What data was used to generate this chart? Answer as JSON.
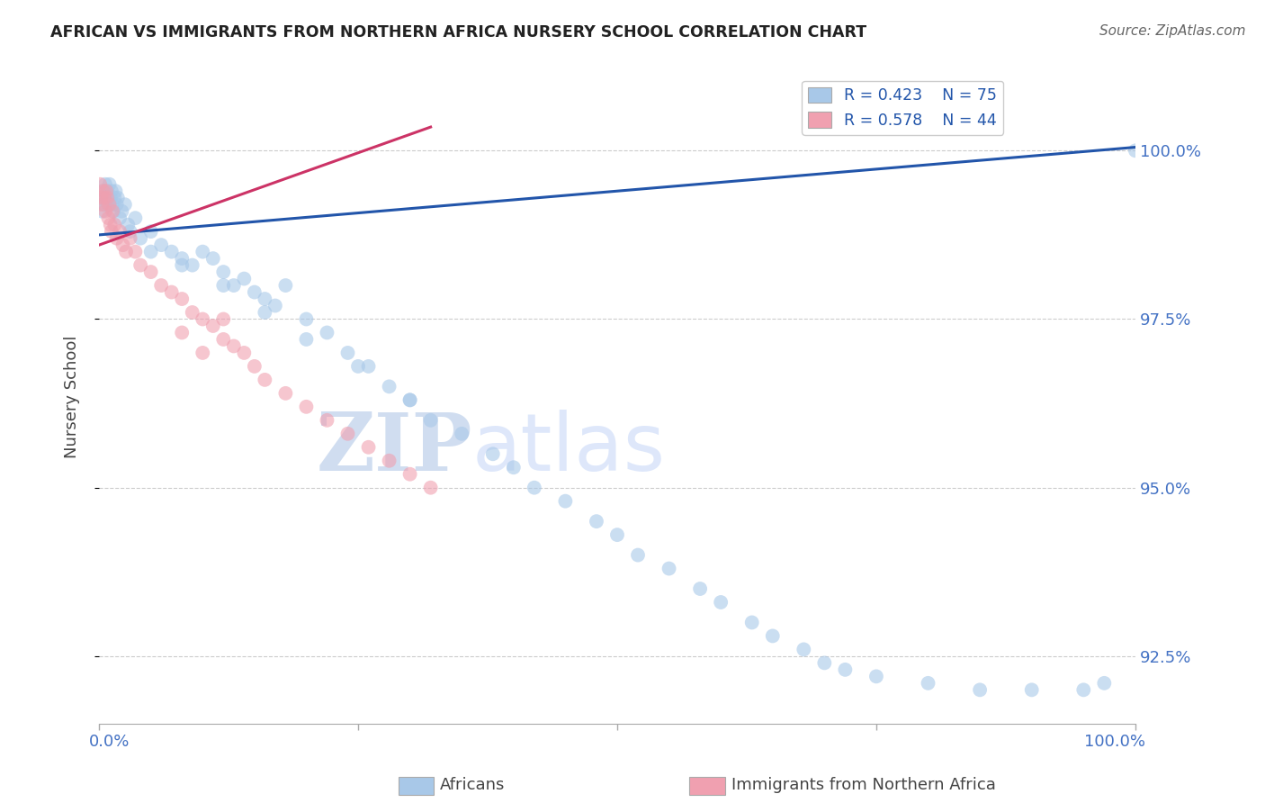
{
  "title": "AFRICAN VS IMMIGRANTS FROM NORTHERN AFRICA NURSERY SCHOOL CORRELATION CHART",
  "source": "Source: ZipAtlas.com",
  "ylabel": "Nursery School",
  "ylabel_right_labels": [
    "92.5%",
    "95.0%",
    "97.5%",
    "100.0%"
  ],
  "ylabel_right_ticks": [
    92.5,
    95.0,
    97.5,
    100.0
  ],
  "xlim": [
    0.0,
    100.0
  ],
  "ylim": [
    91.5,
    101.2
  ],
  "legend_blue_R": "R = 0.423",
  "legend_blue_N": "N = 75",
  "legend_pink_R": "R = 0.578",
  "legend_pink_N": "N = 44",
  "blue_color": "#a8c8e8",
  "pink_color": "#f0a0b0",
  "blue_line_color": "#2255aa",
  "pink_line_color": "#cc3366",
  "watermark_zip": "ZIP",
  "watermark_atlas": "atlas",
  "blue_scatter_x": [
    0.2,
    0.3,
    0.4,
    0.5,
    0.6,
    0.7,
    0.8,
    0.9,
    1.0,
    1.1,
    1.2,
    1.3,
    1.4,
    1.5,
    1.6,
    1.7,
    1.8,
    2.0,
    2.2,
    2.5,
    2.8,
    3.0,
    3.5,
    4.0,
    5.0,
    6.0,
    7.0,
    8.0,
    9.0,
    10.0,
    11.0,
    12.0,
    13.0,
    14.0,
    15.0,
    16.0,
    17.0,
    18.0,
    20.0,
    22.0,
    24.0,
    26.0,
    28.0,
    30.0,
    32.0,
    35.0,
    38.0,
    40.0,
    42.0,
    45.0,
    48.0,
    50.0,
    52.0,
    55.0,
    58.0,
    60.0,
    63.0,
    65.0,
    68.0,
    70.0,
    72.0,
    75.0,
    80.0,
    85.0,
    90.0,
    95.0,
    97.0,
    100.0,
    5.0,
    8.0,
    12.0,
    16.0,
    20.0,
    25.0,
    30.0
  ],
  "blue_scatter_y": [
    99.3,
    99.1,
    99.4,
    99.2,
    99.5,
    99.3,
    99.4,
    99.2,
    99.5,
    99.3,
    99.4,
    99.2,
    99.1,
    99.3,
    99.4,
    99.2,
    99.3,
    99.0,
    99.1,
    99.2,
    98.9,
    98.8,
    99.0,
    98.7,
    98.8,
    98.6,
    98.5,
    98.4,
    98.3,
    98.5,
    98.4,
    98.2,
    98.0,
    98.1,
    97.9,
    97.8,
    97.7,
    98.0,
    97.5,
    97.3,
    97.0,
    96.8,
    96.5,
    96.3,
    96.0,
    95.8,
    95.5,
    95.3,
    95.0,
    94.8,
    94.5,
    94.3,
    94.0,
    93.8,
    93.5,
    93.3,
    93.0,
    92.8,
    92.6,
    92.4,
    92.3,
    92.2,
    92.1,
    92.0,
    92.0,
    92.0,
    92.1,
    100.0,
    98.5,
    98.3,
    98.0,
    97.6,
    97.2,
    96.8,
    96.3
  ],
  "pink_scatter_x": [
    0.1,
    0.2,
    0.3,
    0.4,
    0.5,
    0.6,
    0.7,
    0.8,
    0.9,
    1.0,
    1.1,
    1.2,
    1.3,
    1.5,
    1.7,
    2.0,
    2.3,
    2.6,
    3.0,
    3.5,
    4.0,
    5.0,
    6.0,
    7.0,
    8.0,
    9.0,
    10.0,
    11.0,
    12.0,
    13.0,
    14.0,
    15.0,
    16.0,
    18.0,
    20.0,
    22.0,
    24.0,
    26.0,
    28.0,
    30.0,
    32.0,
    8.0,
    10.0,
    12.0
  ],
  "pink_scatter_y": [
    99.5,
    99.3,
    99.2,
    99.4,
    99.3,
    99.1,
    99.4,
    99.3,
    99.0,
    99.2,
    98.9,
    98.8,
    99.1,
    98.9,
    98.7,
    98.8,
    98.6,
    98.5,
    98.7,
    98.5,
    98.3,
    98.2,
    98.0,
    97.9,
    97.8,
    97.6,
    97.5,
    97.4,
    97.2,
    97.1,
    97.0,
    96.8,
    96.6,
    96.4,
    96.2,
    96.0,
    95.8,
    95.6,
    95.4,
    95.2,
    95.0,
    97.3,
    97.0,
    97.5
  ],
  "blue_trend_x0": 0.0,
  "blue_trend_x1": 100.0,
  "blue_trend_y0": 98.75,
  "blue_trend_y1": 100.05,
  "pink_trend_x0": 0.0,
  "pink_trend_x1": 32.0,
  "pink_trend_y0": 98.6,
  "pink_trend_y1": 100.35
}
